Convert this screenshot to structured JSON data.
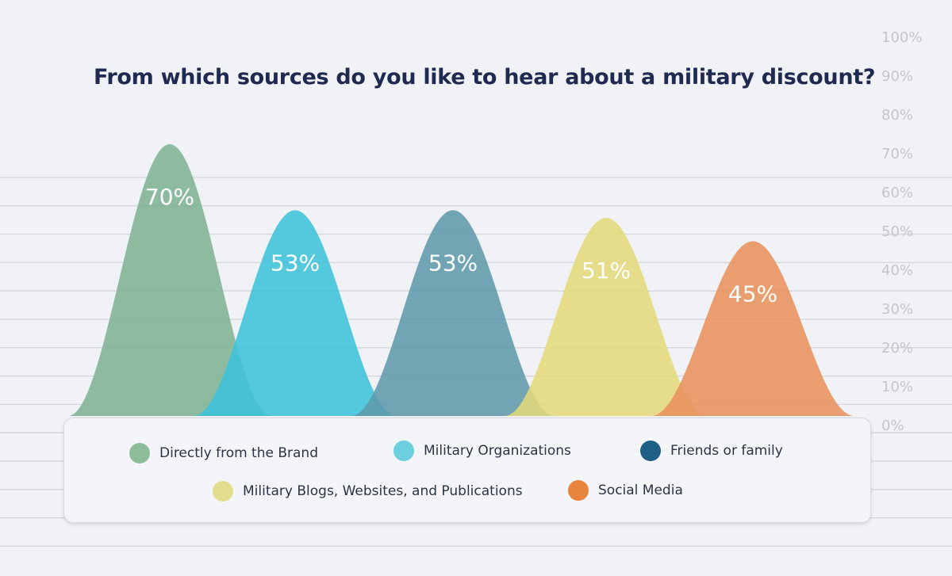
{
  "chart_data": {
    "type": "area",
    "title": "From which sources do you like to hear about a military discount?",
    "y_ticks": [
      "0%",
      "10%",
      "20%",
      "30%",
      "40%",
      "50%",
      "60%",
      "70%",
      "80%",
      "90%",
      "100%"
    ],
    "ylim": [
      0,
      100
    ],
    "grid": true,
    "legend_placement": "bottom",
    "series": [
      {
        "name": "Directly from the Brand",
        "value": 70,
        "label": "70%",
        "color": "#7fb394"
      },
      {
        "name": "Military Organizations",
        "value": 53,
        "label": "53%",
        "color": "#3ec1d9"
      },
      {
        "name": "Friends or family",
        "value": 53,
        "label": "53%",
        "color": "#5e9aab"
      },
      {
        "name": "Military Blogs, Websites, and Publications",
        "value": 51,
        "label": "51%",
        "color": "#e2da7a"
      },
      {
        "name": "Social Media",
        "value": 45,
        "label": "45%",
        "color": "#e8915c"
      }
    ]
  },
  "legend": {
    "items": [
      {
        "label": "Directly from the Brand",
        "color": "#8ebc9a"
      },
      {
        "label": "Military Organizations",
        "color": "#6bcfdd"
      },
      {
        "label": "Friends or family",
        "color": "#1f5f86"
      },
      {
        "label": "Military Blogs, Websites, and Publications",
        "color": "#e2de8e"
      },
      {
        "label": "Social Media",
        "color": "#e8843d"
      }
    ]
  }
}
